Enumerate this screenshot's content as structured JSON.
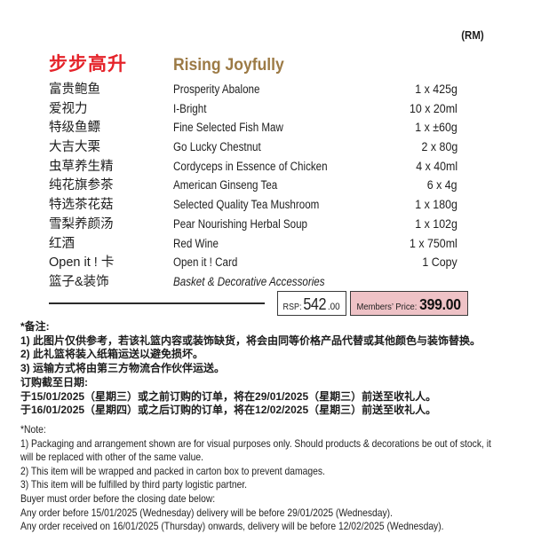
{
  "currency_label": "(RM)",
  "colors": {
    "title_zh": "#e5232a",
    "title_en": "#9c7a45",
    "members_bg": "#eec2c6"
  },
  "header": {
    "title_zh": "步步高升",
    "title_en": "Rising Joyfully"
  },
  "items": [
    {
      "zh": "富贵鲍鱼",
      "en": "Prosperity Abalone",
      "qty": "1 x 425g"
    },
    {
      "zh": "爱视力",
      "en": "I-Bright",
      "qty": "10 x 20ml"
    },
    {
      "zh": "特级鱼鳔",
      "en": "Fine Selected Fish Maw",
      "qty": "1 x ±60g"
    },
    {
      "zh": "大吉大栗",
      "en": "Go Lucky Chestnut",
      "qty": "2 x 80g"
    },
    {
      "zh": "虫草养生精",
      "en": "Cordyceps in Essence of Chicken",
      "qty": "4 x 40ml"
    },
    {
      "zh": "纯花旗参茶",
      "en": "American Ginseng Tea",
      "qty": "6 x 4g"
    },
    {
      "zh": "特选茶花菇",
      "en": "Selected Quality Tea Mushroom",
      "qty": "1 x 180g"
    },
    {
      "zh": "雪梨养颜汤",
      "en": "Pear Nourishing Herbal Soup",
      "qty": "1 x 102g"
    },
    {
      "zh": "红酒",
      "en": "Red Wine",
      "qty": "1 x 750ml"
    },
    {
      "zh": "Open it ! 卡",
      "en": "Open it ! Card",
      "qty": "1 Copy"
    },
    {
      "zh": "篮子&装饰",
      "en": "Basket & Decorative Accessories",
      "qty": "",
      "italic": true
    }
  ],
  "pricing": {
    "rsp_label": "RSP:",
    "rsp_major": "542",
    "rsp_minor": ".00",
    "members_label": "Members’ Price:",
    "members_value": "399.00"
  },
  "notes_zh": {
    "lines": [
      "*备注:",
      "1) 此图片仅供参考，若该礼篮内容或装饰缺货，将会由同等价格产品代替或其他颜色与装饰替换。",
      "2) 此礼篮将装入纸箱运送以避免损坏。",
      "3) 运输方式将由第三方物流合作伙伴运送。",
      "订购截至日期:",
      "于15/01/2025（星期三）或之前订购的订单，将在29/01/2025（星期三）前送至收礼人。",
      "于16/01/2025（星期四）或之后订购的订单，将在12/02/2025（星期三）前送至收礼人。"
    ]
  },
  "notes_en": {
    "lines": [
      "*Note:",
      "1) Packaging and arrangement shown are for visual purposes only. Should products & decorations be out of stock, it",
      "will be replaced with other of the same value.",
      "2) This item will be wrapped and packed in carton box to prevent damages.",
      "3) This item will be fulfilled by third party logistic partner.",
      "Buyer must order before the closing date below:",
      "Any order before 15/01/2025 (Wednesday) delivery will be before 29/01/2025 (Wednesday).",
      "Any order received on 16/01/2025 (Thursday) onwards, delivery will be before 12/02/2025 (Wednesday)."
    ]
  }
}
